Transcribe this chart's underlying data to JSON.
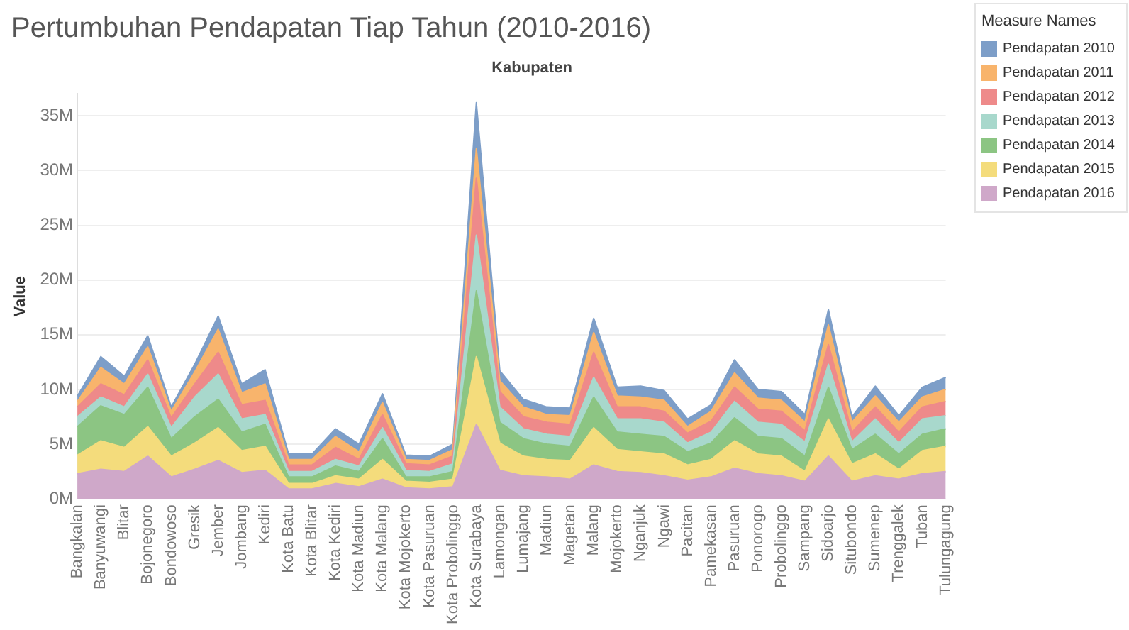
{
  "chart_data": {
    "type": "area",
    "stacked": true,
    "title": "Pertumbuhan Pendapatan Tiap Tahun (2010-2016)",
    "xlabel": "Kabupaten",
    "ylabel": "Value",
    "legend_title": "Measure Names",
    "legend": "right",
    "grid": "y",
    "categories": [
      "Bangkalan",
      "Banyuwangi",
      "Blitar",
      "Bojonegoro",
      "Bondowoso",
      "Gresik",
      "Jember",
      "Jombang",
      "Kediri",
      "Kota Batu",
      "Kota Blitar",
      "Kota Kediri",
      "Kota Madiun",
      "Kota Malang",
      "Kota Mojokerto",
      "Kota Pasuruan",
      "Kota Probolinggo",
      "Kota Surabaya",
      "Lamongan",
      "Lumajang",
      "Madiun",
      "Magetan",
      "Malang",
      "Mojokerto",
      "Nganjuk",
      "Ngawi",
      "Pacitan",
      "Pamekasan",
      "Pasuruan",
      "Ponorogo",
      "Probolinggo",
      "Sampang",
      "Sidoarjo",
      "Situbondo",
      "Sumenep",
      "Trenggalek",
      "Tuban",
      "Tulungagung"
    ],
    "ylim": [
      0,
      37
    ],
    "yticks": [
      {
        "value": 0,
        "label": "0M"
      },
      {
        "value": 5,
        "label": "5M"
      },
      {
        "value": 10,
        "label": "10M"
      },
      {
        "value": 15,
        "label": "15M"
      },
      {
        "value": 20,
        "label": "20M"
      },
      {
        "value": 25,
        "label": "25M"
      },
      {
        "value": 30,
        "label": "30M"
      },
      {
        "value": 35,
        "label": "35M"
      }
    ],
    "series": [
      {
        "name": "Pendapatan 2016",
        "color": "#cfa8c9",
        "values": [
          2.3,
          2.7,
          2.5,
          3.9,
          2.0,
          2.7,
          3.5,
          2.4,
          2.6,
          0.9,
          0.9,
          1.4,
          1.1,
          1.8,
          1.0,
          0.9,
          1.1,
          6.8,
          2.6,
          2.1,
          2.0,
          1.8,
          3.1,
          2.5,
          2.4,
          2.1,
          1.7,
          2.0,
          2.8,
          2.3,
          2.1,
          1.6,
          3.9,
          1.6,
          2.1,
          1.8,
          2.3,
          2.5
        ]
      },
      {
        "name": "Pendapatan 2015",
        "color": "#f4dc7c",
        "values": [
          1.7,
          2.6,
          2.2,
          2.7,
          1.9,
          2.4,
          3.0,
          2.0,
          2.2,
          0.5,
          0.5,
          0.7,
          0.7,
          1.8,
          0.6,
          0.6,
          0.7,
          6.2,
          2.5,
          1.8,
          1.6,
          1.7,
          3.4,
          2.0,
          1.9,
          2.0,
          1.4,
          1.6,
          2.5,
          1.8,
          1.8,
          0.9,
          3.4,
          1.6,
          2.0,
          0.9,
          2.1,
          2.3
        ]
      },
      {
        "name": "Pendapatan 2014",
        "color": "#8cc583",
        "values": [
          2.6,
          3.2,
          3.0,
          3.6,
          1.6,
          2.4,
          2.6,
          1.7,
          2.0,
          0.6,
          0.6,
          0.9,
          0.7,
          1.9,
          0.4,
          0.5,
          0.7,
          6.0,
          1.9,
          1.6,
          1.4,
          1.3,
          2.8,
          1.6,
          1.6,
          1.6,
          1.2,
          1.5,
          2.1,
          1.6,
          1.6,
          1.4,
          2.9,
          1.3,
          1.8,
          1.4,
          1.5,
          1.6
        ]
      },
      {
        "name": "Pendapatan 2013",
        "color": "#a8d8cc",
        "values": [
          0.9,
          0.8,
          0.7,
          1.2,
          1.0,
          1.8,
          2.3,
          1.2,
          0.9,
          0.5,
          0.5,
          0.6,
          0.5,
          1.0,
          0.6,
          0.5,
          0.7,
          5.1,
          1.4,
          0.9,
          0.9,
          0.9,
          1.8,
          1.2,
          1.4,
          1.3,
          0.8,
          1.0,
          1.5,
          1.3,
          1.3,
          1.3,
          2.1,
          0.7,
          1.4,
          1.0,
          1.4,
          1.2
        ]
      },
      {
        "name": "Pendapatan 2012",
        "color": "#ee8a8a",
        "values": [
          0.9,
          1.2,
          1.1,
          1.3,
          0.9,
          1.2,
          2.0,
          1.3,
          1.3,
          0.6,
          0.6,
          1.1,
          0.6,
          1.2,
          0.6,
          0.6,
          0.7,
          5.2,
          1.4,
          1.1,
          1.1,
          1.1,
          2.3,
          1.1,
          1.1,
          1.0,
          0.9,
          1.0,
          1.3,
          1.2,
          1.2,
          1.0,
          1.8,
          0.9,
          1.1,
          1.0,
          1.1,
          1.3
        ]
      },
      {
        "name": "Pendapatan 2011",
        "color": "#f8b46c",
        "values": [
          0.5,
          1.5,
          1.0,
          1.2,
          0.6,
          1.1,
          2.1,
          1.1,
          1.5,
          0.5,
          0.5,
          1.0,
          0.7,
          1.1,
          0.4,
          0.4,
          0.6,
          2.7,
          1.0,
          0.9,
          0.7,
          0.8,
          1.8,
          1.0,
          0.9,
          1.0,
          0.6,
          0.9,
          1.3,
          1.0,
          1.0,
          0.8,
          1.8,
          0.9,
          1.0,
          0.9,
          0.9,
          1.1
        ]
      },
      {
        "name": "Pendapatan 2010",
        "color": "#7d9ec8",
        "values": [
          0.5,
          1.0,
          0.7,
          1.0,
          0.4,
          0.7,
          1.2,
          0.8,
          1.3,
          0.5,
          0.5,
          0.7,
          0.7,
          0.8,
          0.4,
          0.4,
          0.5,
          4.2,
          0.9,
          0.7,
          0.7,
          0.7,
          1.3,
          0.8,
          1.0,
          0.9,
          0.7,
          0.6,
          1.2,
          0.8,
          0.8,
          0.7,
          1.4,
          0.5,
          0.9,
          0.6,
          0.9,
          1.1
        ]
      }
    ]
  }
}
